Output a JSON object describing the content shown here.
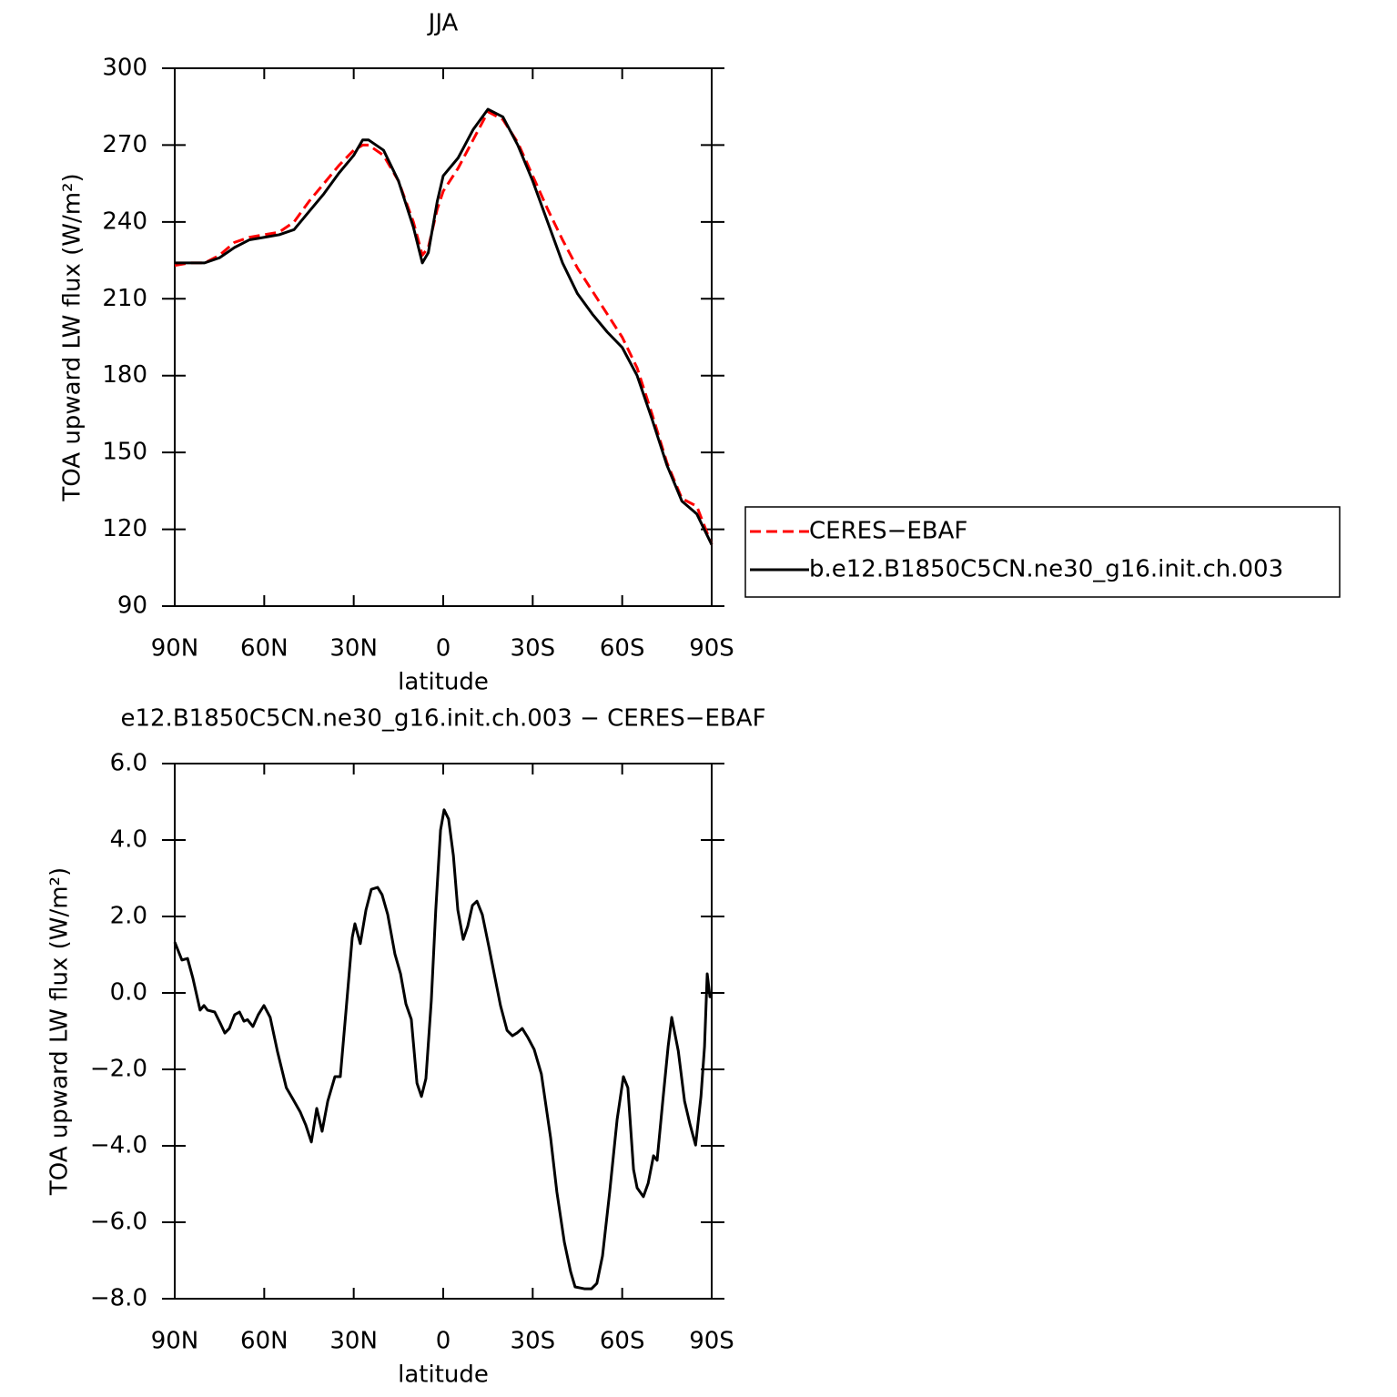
{
  "chart_data": [
    {
      "type": "line",
      "title": "JJA",
      "x_label": "latitude",
      "y_label": "TOA upward LW flux (W/m²)",
      "x": [
        90,
        85,
        80,
        75,
        70,
        65,
        60,
        55,
        50,
        45,
        40,
        35,
        30,
        27,
        25,
        20,
        15,
        10,
        7,
        5,
        2,
        0,
        -5,
        -10,
        -15,
        -20,
        -25,
        -30,
        -35,
        -40,
        -45,
        -50,
        -55,
        -60,
        -65,
        -70,
        -75,
        -80,
        -85,
        -90
      ],
      "series": [
        {
          "name": "CERES−EBAF",
          "color": "#ff0000",
          "line_style": "dashed",
          "values": [
            223,
            224,
            224,
            227,
            232,
            234,
            235,
            236,
            240,
            248,
            255,
            262,
            268,
            270,
            270,
            266,
            256,
            240,
            227,
            230,
            245,
            252,
            261,
            272,
            283,
            280,
            271,
            258,
            245,
            233,
            222,
            213,
            204,
            195,
            183,
            165,
            146,
            132,
            129,
            114
          ]
        },
        {
          "name": "b.e12.B1850C5CN.ne30_g16.init.ch.003",
          "color": "#000000",
          "line_style": "solid",
          "values": [
            224,
            224,
            224,
            226,
            230,
            233,
            234,
            235,
            237,
            244,
            251,
            259,
            266,
            272,
            272,
            268,
            256,
            238,
            224,
            228,
            248,
            258,
            265,
            276,
            284,
            281,
            270,
            256,
            240,
            224,
            212,
            204,
            197,
            191,
            180,
            163,
            145,
            131,
            126,
            114
          ]
        }
      ],
      "xlim": [
        90,
        -90
      ],
      "xticks": [
        {
          "value": 90,
          "label": "90N"
        },
        {
          "value": 60,
          "label": "60N"
        },
        {
          "value": 30,
          "label": "30N"
        },
        0,
        {
          "value": -30,
          "label": "30S"
        },
        {
          "value": -60,
          "label": "60S"
        },
        {
          "value": -90,
          "label": "90S"
        }
      ],
      "ylim": [
        90,
        300
      ],
      "yticks": [
        90,
        120,
        150,
        180,
        210,
        240,
        270,
        300
      ],
      "legend": "right"
    },
    {
      "type": "line",
      "title": "e12.B1850C5CN.ne30_g16.init.ch.003 − CERES−EBAF",
      "x_label": "latitude",
      "y_label": "TOA upward LW flux (W/m²)",
      "x": [
        90,
        87.6,
        85.7,
        83.9,
        81.5,
        80.2,
        79,
        76.6,
        74.7,
        73.2,
        71.7,
        69.9,
        68.3,
        66.8,
        65.6,
        63.8,
        62,
        60.1,
        58,
        55.6,
        52.6,
        50.3,
        47.9,
        46.1,
        44.2,
        42.4,
        40.6,
        38.7,
        36.3,
        34.5,
        32.7,
        30.5,
        29.6,
        27.8,
        25.9,
        24.1,
        22,
        20.5,
        18.6,
        16.2,
        14.3,
        12.5,
        10.7,
        8.8,
        7.3,
        5.8,
        4,
        2.5,
        0.9,
        -0.3,
        -1.8,
        -3.4,
        -4.9,
        -6.7,
        -8.2,
        -9.8,
        -11.3,
        -13.1,
        -15.3,
        -17.7,
        -19.2,
        -21.4,
        -23.2,
        -24.7,
        -26.5,
        -28.4,
        -30.5,
        -32.9,
        -36,
        -38.1,
        -40.6,
        -42.7,
        -44.2,
        -47.3,
        -49.7,
        -51.5,
        -53.4,
        -55.8,
        -58.3,
        -60.4,
        -61.9,
        -63.8,
        -65,
        -67.1,
        -68.7,
        -70.5,
        -71.7,
        -73.6,
        -75.4,
        -76.6,
        -78.8,
        -80.9,
        -82.7,
        -84.6,
        -86.4,
        -87.6,
        -88.5,
        -89.4,
        -90
      ],
      "values": [
        1.33,
        0.86,
        0.9,
        0.38,
        -0.45,
        -0.33,
        -0.45,
        -0.5,
        -0.8,
        -1.05,
        -0.93,
        -0.57,
        -0.5,
        -0.74,
        -0.7,
        -0.88,
        -0.57,
        -0.33,
        -0.64,
        -1.52,
        -2.48,
        -2.79,
        -3.12,
        -3.45,
        -3.9,
        -3.02,
        -3.62,
        -2.83,
        -2.19,
        -2.19,
        -0.57,
        1.45,
        1.81,
        1.29,
        2.17,
        2.71,
        2.76,
        2.57,
        2.05,
        1.02,
        0.5,
        -0.29,
        -0.69,
        -2.36,
        -2.71,
        -2.24,
        -0.21,
        2.17,
        4.26,
        4.79,
        4.55,
        3.6,
        2.17,
        1.4,
        1.74,
        2.29,
        2.4,
        2.05,
        1.21,
        0.26,
        -0.33,
        -0.98,
        -1.12,
        -1.05,
        -0.93,
        -1.17,
        -1.48,
        -2.12,
        -3.79,
        -5.21,
        -6.52,
        -7.29,
        -7.69,
        -7.74,
        -7.74,
        -7.6,
        -6.88,
        -5.21,
        -3.31,
        -2.19,
        -2.48,
        -4.62,
        -5.1,
        -5.33,
        -4.98,
        -4.26,
        -4.38,
        -2.83,
        -1.4,
        -0.64,
        -1.52,
        -2.83,
        -3.43,
        -3.98,
        -2.71,
        -1.4,
        0.5,
        -0.1,
        -0.1
      ],
      "color": "#000000",
      "xlim": [
        90,
        -90
      ],
      "xticks": [
        {
          "value": 90,
          "label": "90N"
        },
        {
          "value": 60,
          "label": "60N"
        },
        {
          "value": 30,
          "label": "30N"
        },
        0,
        {
          "value": -30,
          "label": "30S"
        },
        {
          "value": -60,
          "label": "60S"
        },
        {
          "value": -90,
          "label": "90S"
        }
      ],
      "ylim": [
        -8,
        6
      ],
      "yticks": [
        {
          "value": -8,
          "label": "−8.0"
        },
        {
          "value": -6,
          "label": "−6.0"
        },
        {
          "value": -4,
          "label": "−4.0"
        },
        {
          "value": -2,
          "label": "−2.0"
        },
        {
          "value": 0,
          "label": "0.0"
        },
        {
          "value": 2,
          "label": "2.0"
        },
        {
          "value": 4,
          "label": "4.0"
        },
        {
          "value": 6,
          "label": "6.0"
        }
      ]
    }
  ]
}
